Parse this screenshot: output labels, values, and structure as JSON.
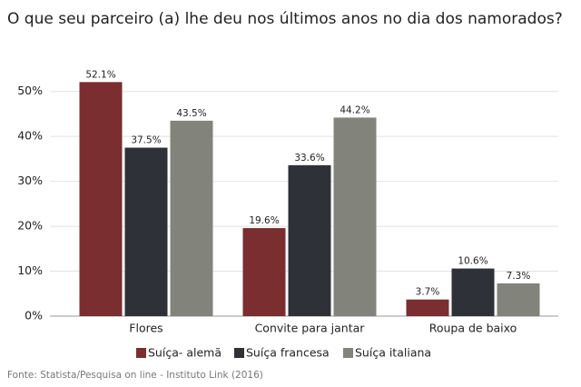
{
  "chart_data": {
    "type": "bar",
    "title": "O que seu parceiro (a) lhe deu nos últimos anos no dia dos namorados?",
    "categories": [
      "Flores",
      "Convite para jantar",
      "Roupa de baixo"
    ],
    "series": [
      {
        "name": "Suíça- alemã",
        "color": "#7a2e2f",
        "values": [
          52.1,
          19.6,
          3.7
        ],
        "value_labels": [
          "52.1%",
          "19.6%",
          "3.7%"
        ]
      },
      {
        "name": "Suíça francesa",
        "color": "#2e3138",
        "values": [
          37.5,
          33.6,
          10.6
        ],
        "value_labels": [
          "37.5%",
          "33.6%",
          "10.6%"
        ]
      },
      {
        "name": "Suíça italiana",
        "color": "#82847c",
        "values": [
          43.5,
          44.2,
          7.3
        ],
        "value_labels": [
          "43.5%",
          "44.2%",
          "7.3%"
        ]
      }
    ],
    "ylim": [
      0,
      55
    ],
    "yticks": [
      {
        "value": 0,
        "label": "0%"
      },
      {
        "value": 10,
        "label": "10%"
      },
      {
        "value": 20,
        "label": "20%"
      },
      {
        "value": 30,
        "label": "30%"
      },
      {
        "value": 40,
        "label": "40%"
      },
      {
        "value": 50,
        "label": "50%"
      }
    ],
    "grid": true,
    "source": "Fonte: Statista/Pesquisa on line - Instituto Link (2016)"
  }
}
